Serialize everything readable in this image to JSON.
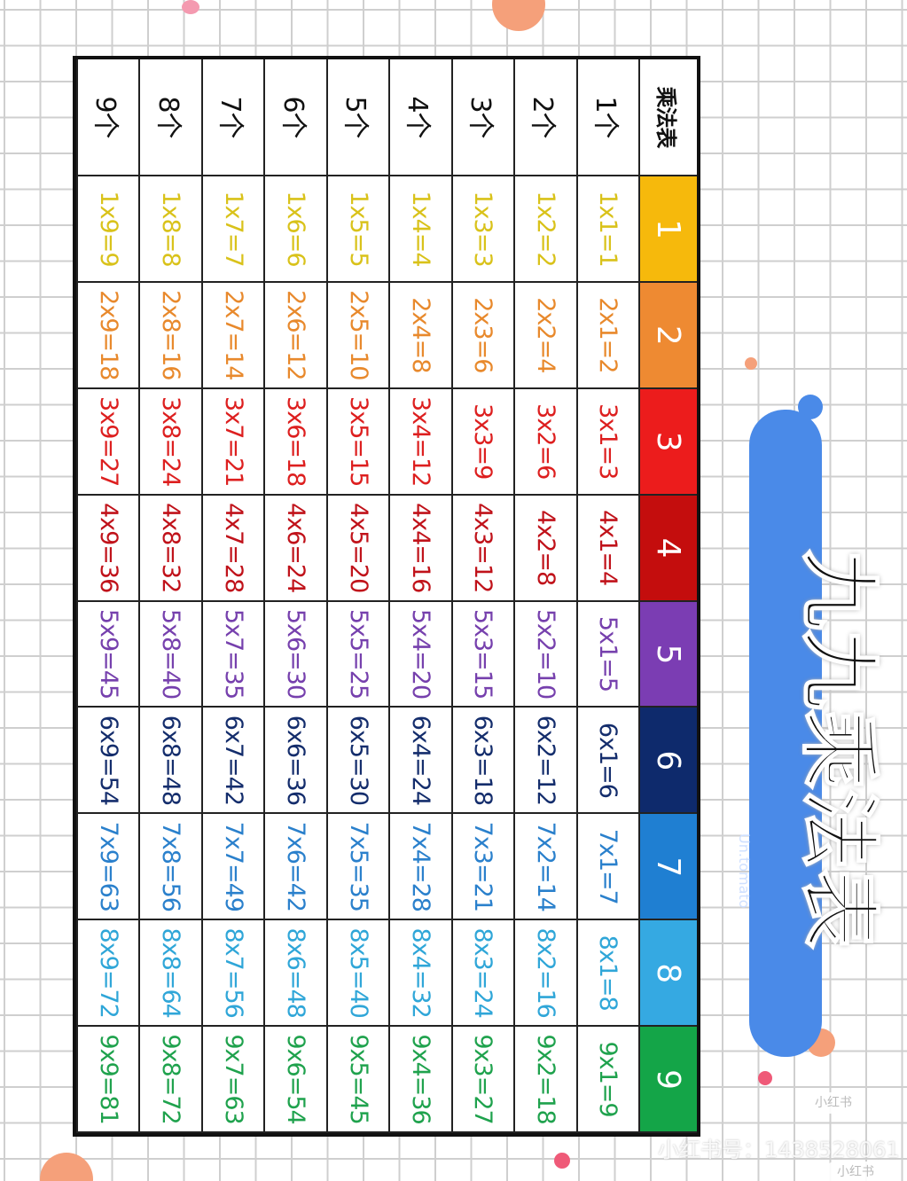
{
  "title": "九九乘法表",
  "brand": "Un.tomato",
  "watermark": "小红书号：1438528061",
  "badges": [
    "小红书",
    "小红书"
  ],
  "table": {
    "corner": "乘法表",
    "headers": [
      {
        "label": "1",
        "color": "#f6b90c",
        "text": "#d9c21a"
      },
      {
        "label": "2",
        "color": "#ee8a32",
        "text": "#e8892c"
      },
      {
        "label": "3",
        "color": "#ec1c1c",
        "text": "#dd1f1f"
      },
      {
        "label": "4",
        "color": "#c40d0d",
        "text": "#c0121a"
      },
      {
        "label": "5",
        "color": "#7b3db3",
        "text": "#7640ad"
      },
      {
        "label": "6",
        "color": "#0e2a6c",
        "text": "#142d6c"
      },
      {
        "label": "7",
        "color": "#1f7fd2",
        "text": "#2a80cc"
      },
      {
        "label": "8",
        "color": "#35a9e2",
        "text": "#2fa6d8"
      },
      {
        "label": "9",
        "color": "#14a548",
        "text": "#1fa24d"
      }
    ],
    "rows": [
      {
        "label": "1个",
        "cells": [
          "1x1=1",
          "2x1=2",
          "3x1=3",
          "4x1=4",
          "5x1=5",
          "6x1=6",
          "7x1=7",
          "8x1=8",
          "9x1=9"
        ]
      },
      {
        "label": "2个",
        "cells": [
          "1x2=2",
          "2x2=4",
          "3x2=6",
          "4x2=8",
          "5x2=10",
          "6x2=12",
          "7x2=14",
          "8x2=16",
          "9x2=18"
        ]
      },
      {
        "label": "3个",
        "cells": [
          "1x3=3",
          "2x3=6",
          "3x3=9",
          "4x3=12",
          "5x3=15",
          "6x3=18",
          "7x3=21",
          "8x3=24",
          "9x3=27"
        ]
      },
      {
        "label": "4个",
        "cells": [
          "1x4=4",
          "2x4=8",
          "3x4=12",
          "4x4=16",
          "5x4=20",
          "6x4=24",
          "7x4=28",
          "8x4=32",
          "9x4=36"
        ]
      },
      {
        "label": "5个",
        "cells": [
          "1x5=5",
          "2x5=10",
          "3x5=15",
          "4x5=20",
          "5x5=25",
          "6x5=30",
          "7x5=35",
          "8x5=40",
          "9x5=45"
        ]
      },
      {
        "label": "6个",
        "cells": [
          "1x6=6",
          "2x6=12",
          "3x6=18",
          "4x6=24",
          "5x6=30",
          "6x6=36",
          "7x6=42",
          "8x6=48",
          "9x6=54"
        ]
      },
      {
        "label": "7个",
        "cells": [
          "1x7=7",
          "2x7=14",
          "3x7=21",
          "4x7=28",
          "5x7=35",
          "6x7=42",
          "7x7=49",
          "8x7=56",
          "9x7=63"
        ]
      },
      {
        "label": "8个",
        "cells": [
          "1x8=8",
          "2x8=16",
          "3x8=24",
          "4x8=32",
          "5x8=40",
          "6x8=48",
          "7x8=56",
          "8x8=64",
          "9x8=72"
        ]
      },
      {
        "label": "9个",
        "cells": [
          "1x9=9",
          "2x9=18",
          "3x9=27",
          "4x9=36",
          "5x9=45",
          "6x9=54",
          "7x9=63",
          "8x9=72",
          "9x9=81"
        ]
      }
    ]
  }
}
